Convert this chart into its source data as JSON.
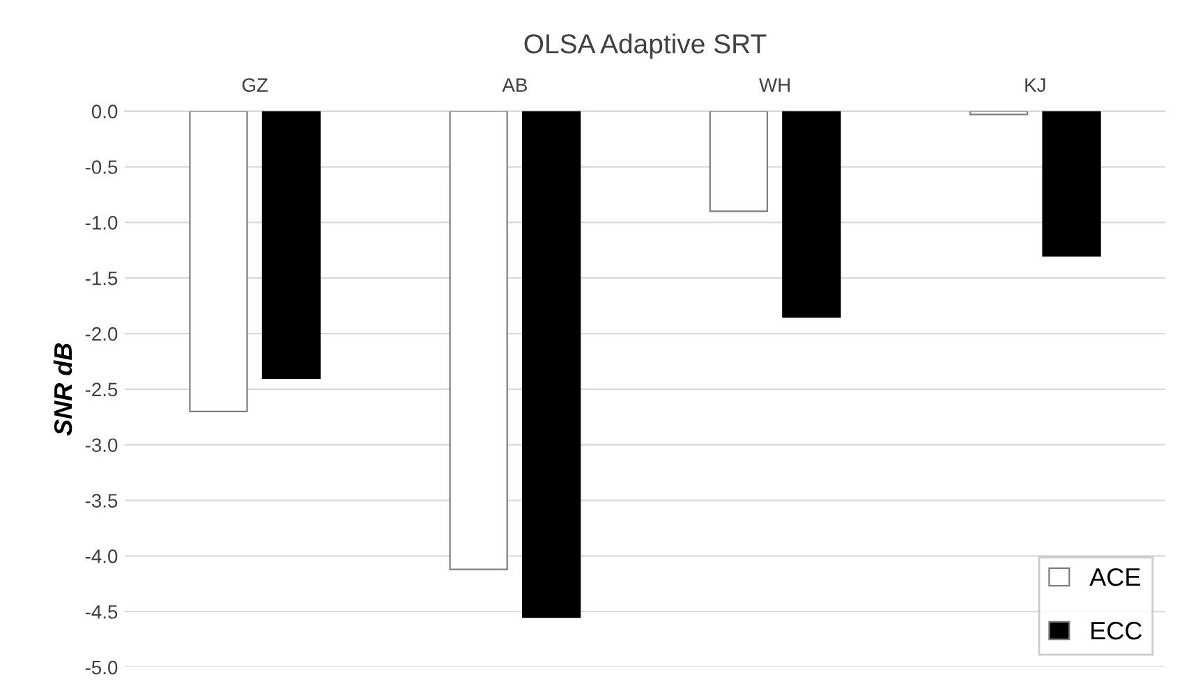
{
  "chart_data": {
    "type": "bar",
    "title": "OLSA Adaptive SRT",
    "ylabel": "SNR dB",
    "categories": [
      "GZ",
      "AB",
      "WH",
      "KJ"
    ],
    "series": [
      {
        "name": "ACE",
        "color": "#ffffff",
        "values": [
          -2.7,
          -4.12,
          -0.9,
          -0.03
        ]
      },
      {
        "name": "ECC",
        "color": "#000000",
        "values": [
          -2.4,
          -4.55,
          -1.85,
          -1.3
        ]
      }
    ],
    "ylim": [
      -5,
      0
    ],
    "yticks": [
      {
        "value": 0,
        "label": "0.0"
      },
      -0.5,
      {
        "value": -1,
        "label": "-1.0"
      },
      -1.5,
      {
        "value": -2,
        "label": "-2.0"
      },
      -2.5,
      {
        "value": -3,
        "label": "-3.0"
      },
      -3.5,
      {
        "value": -4,
        "label": "-4.0"
      },
      -4.5,
      {
        "value": -5,
        "label": "-5.0"
      }
    ],
    "grid": "y",
    "legend": "bottom right"
  }
}
